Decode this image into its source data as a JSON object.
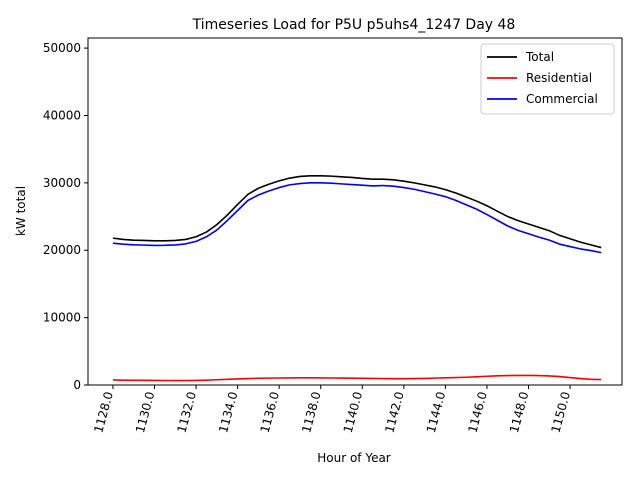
{
  "chart_data": {
    "type": "line",
    "title": "Timeseries Load for P5U p5uhs4_1247  Day 48",
    "xlabel": "Hour of Year",
    "ylabel": "kW total",
    "xlim": [
      1126.8,
      1152.5
    ],
    "ylim": [
      0,
      51500
    ],
    "x_ticks": [
      "1128.0",
      "1130.0",
      "1132.0",
      "1134.0",
      "1136.0",
      "1138.0",
      "1140.0",
      "1142.0",
      "1144.0",
      "1146.0",
      "1148.0",
      "1150.0"
    ],
    "y_ticks": [
      "0",
      "10000",
      "20000",
      "30000",
      "40000",
      "50000"
    ],
    "legend_position": "top-right",
    "x": [
      1128,
      1128.5,
      1129,
      1129.5,
      1130,
      1130.5,
      1131,
      1131.5,
      1132,
      1132.5,
      1133,
      1133.5,
      1134,
      1134.5,
      1135,
      1135.5,
      1136,
      1136.5,
      1137,
      1137.5,
      1138,
      1138.5,
      1139,
      1139.5,
      1140,
      1140.5,
      1141,
      1141.5,
      1142,
      1142.5,
      1143,
      1143.5,
      1144,
      1144.5,
      1145,
      1145.5,
      1146,
      1146.5,
      1147,
      1147.5,
      1148,
      1148.5,
      1149,
      1149.5,
      1150,
      1150.5,
      1151,
      1151.5
    ],
    "series": [
      {
        "name": "Total",
        "color": "#000000",
        "values": [
          21800,
          21600,
          21500,
          21450,
          21400,
          21400,
          21450,
          21600,
          22000,
          22700,
          23800,
          25200,
          26800,
          28300,
          29200,
          29800,
          30300,
          30700,
          30950,
          31050,
          31050,
          31000,
          30900,
          30800,
          30650,
          30550,
          30550,
          30450,
          30250,
          30000,
          29700,
          29400,
          29000,
          28500,
          27900,
          27300,
          26600,
          25800,
          25000,
          24400,
          23900,
          23400,
          22900,
          22200,
          21700,
          21200,
          20800,
          20400
        ]
      },
      {
        "name": "Residential",
        "color": "#ff0000",
        "values": [
          750,
          720,
          700,
          690,
          680,
          670,
          660,
          660,
          680,
          720,
          780,
          840,
          900,
          950,
          1000,
          1020,
          1040,
          1050,
          1060,
          1060,
          1050,
          1040,
          1030,
          1010,
          990,
          970,
          950,
          940,
          930,
          950,
          980,
          1020,
          1060,
          1100,
          1150,
          1220,
          1300,
          1360,
          1400,
          1420,
          1420,
          1400,
          1350,
          1250,
          1100,
          950,
          850,
          800
        ]
      },
      {
        "name": "Commercial",
        "color": "#0000ff",
        "values": [
          21050,
          20900,
          20800,
          20760,
          20720,
          20730,
          20790,
          20940,
          21320,
          22000,
          23000,
          24400,
          25900,
          27400,
          28200,
          28800,
          29300,
          29700,
          29900,
          30000,
          30000,
          29950,
          29850,
          29750,
          29650,
          29550,
          29600,
          29500,
          29300,
          29050,
          28700,
          28350,
          27950,
          27400,
          26750,
          26100,
          25300,
          24450,
          23600,
          22950,
          22450,
          21950,
          21500,
          20900,
          20550,
          20200,
          19950,
          19650
        ]
      }
    ]
  }
}
